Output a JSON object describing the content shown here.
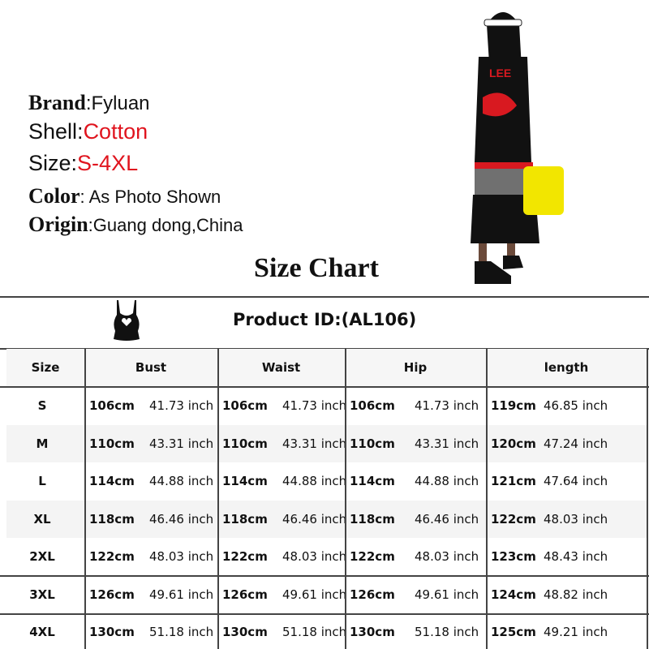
{
  "specs": {
    "brand": {
      "label": "Brand",
      "value": "Fyluan"
    },
    "shell": {
      "label": "Shell",
      "value": "Cotton"
    },
    "size": {
      "label": "Size",
      "value": "S-4XL"
    },
    "color": {
      "label": "Color",
      "value": " As Photo Shown"
    },
    "origin": {
      "label": "Origin",
      "value": "Guang dong,China"
    }
  },
  "colors": {
    "accent": "#e0141e"
  },
  "chart_title": "Size Chart",
  "table": {
    "product_id": "Product ID:(AL106)",
    "icon": "camisole-top-icon",
    "headers": [
      "Size",
      "Bust",
      "Waist",
      "Hip",
      "length"
    ],
    "rows": [
      {
        "size": "S",
        "bust": [
          "106cm",
          "41.73 inch"
        ],
        "waist": [
          "106cm",
          "41.73 inch"
        ],
        "hip": [
          "106cm",
          "41.73 inch"
        ],
        "length": [
          "119cm",
          "46.85 inch"
        ]
      },
      {
        "size": "M",
        "bust": [
          "110cm",
          "43.31 inch"
        ],
        "waist": [
          "110cm",
          "43.31 inch"
        ],
        "hip": [
          "110cm",
          "43.31 inch"
        ],
        "length": [
          "120cm",
          "47.24 inch"
        ]
      },
      {
        "size": "L",
        "bust": [
          "114cm",
          "44.88 inch"
        ],
        "waist": [
          "114cm",
          "44.88 inch"
        ],
        "hip": [
          "114cm",
          "44.88 inch"
        ],
        "length": [
          "121cm",
          "47.64 inch"
        ]
      },
      {
        "size": "XL",
        "bust": [
          "118cm",
          "46.46 inch"
        ],
        "waist": [
          "118cm",
          "46.46 inch"
        ],
        "hip": [
          "118cm",
          "46.46 inch"
        ],
        "length": [
          "122cm",
          "48.03 inch"
        ]
      },
      {
        "size": "2XL",
        "bust": [
          "122cm",
          "48.03 inch"
        ],
        "waist": [
          "122cm",
          "48.03 inch"
        ],
        "hip": [
          "122cm",
          "48.03 inch"
        ],
        "length": [
          "123cm",
          "48.43 inch"
        ]
      },
      {
        "size": "3XL",
        "bust": [
          "126cm",
          "49.61 inch"
        ],
        "waist": [
          "126cm",
          "49.61 inch"
        ],
        "hip": [
          "126cm",
          "49.61 inch"
        ],
        "length": [
          "124cm",
          "48.82 inch"
        ]
      },
      {
        "size": "4XL",
        "bust": [
          "130cm",
          "51.18 inch"
        ],
        "waist": [
          "130cm",
          "51.18 inch"
        ],
        "hip": [
          "130cm",
          "51.18 inch"
        ],
        "length": [
          "125cm",
          "49.21 inch"
        ]
      }
    ]
  }
}
